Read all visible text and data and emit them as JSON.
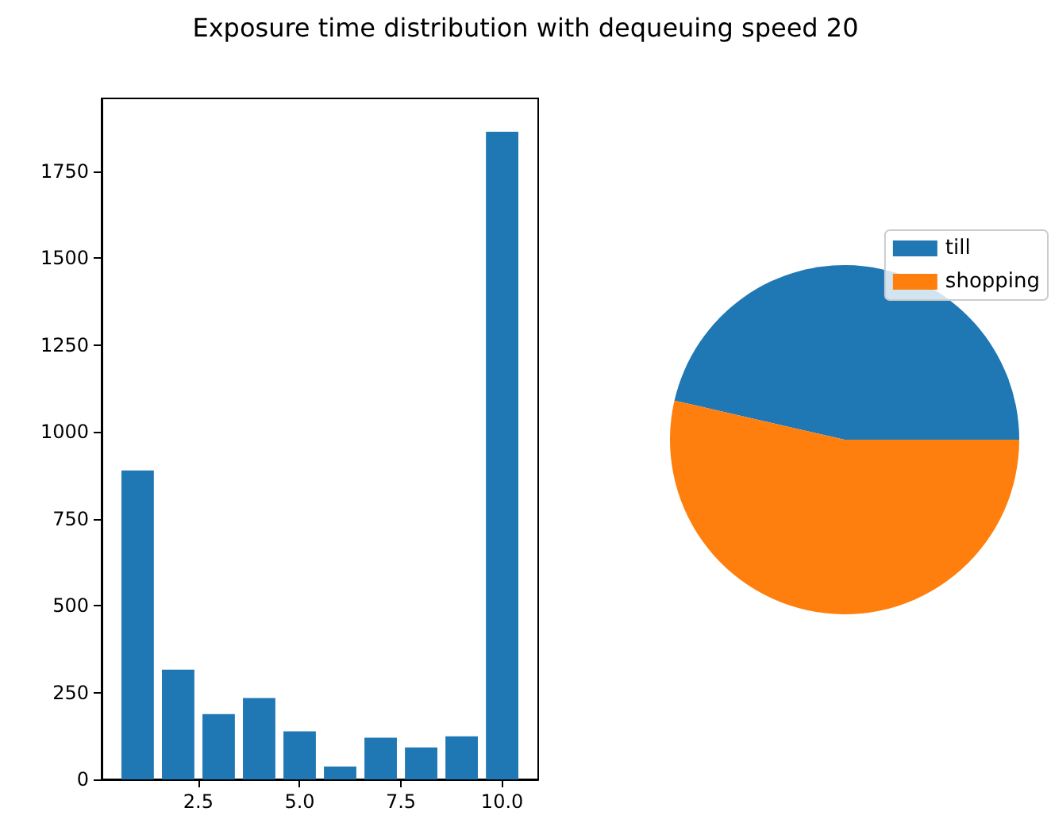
{
  "chart_data": [
    {
      "type": "bar",
      "title": "Exposure time distribution with dequeuing speed 20",
      "x": [
        1,
        2,
        3,
        4,
        5,
        6,
        7,
        8,
        9,
        10
      ],
      "values": [
        889,
        316,
        188,
        234,
        138,
        37,
        120,
        92,
        124,
        1864
      ],
      "color": "#1f77b4",
      "xlim": [
        0.11,
        10.89
      ],
      "xticks": [
        {
          "value": 2.5,
          "label": "2.5"
        },
        {
          "value": 5,
          "label": "5.0"
        },
        {
          "value": 7.5,
          "label": "7.5"
        },
        {
          "value": 10,
          "label": "10.0"
        }
      ],
      "ylim": [
        0,
        1960
      ],
      "yticks": [
        0,
        250,
        500,
        750,
        1000,
        1250,
        1500,
        1750
      ],
      "grid": false
    },
    {
      "type": "pie",
      "categories": [
        "till",
        "shopping"
      ],
      "values": [
        46.4,
        53.6
      ],
      "colors": [
        "#1f77b4",
        "#ff7f0e"
      ],
      "legend": "top right"
    }
  ]
}
